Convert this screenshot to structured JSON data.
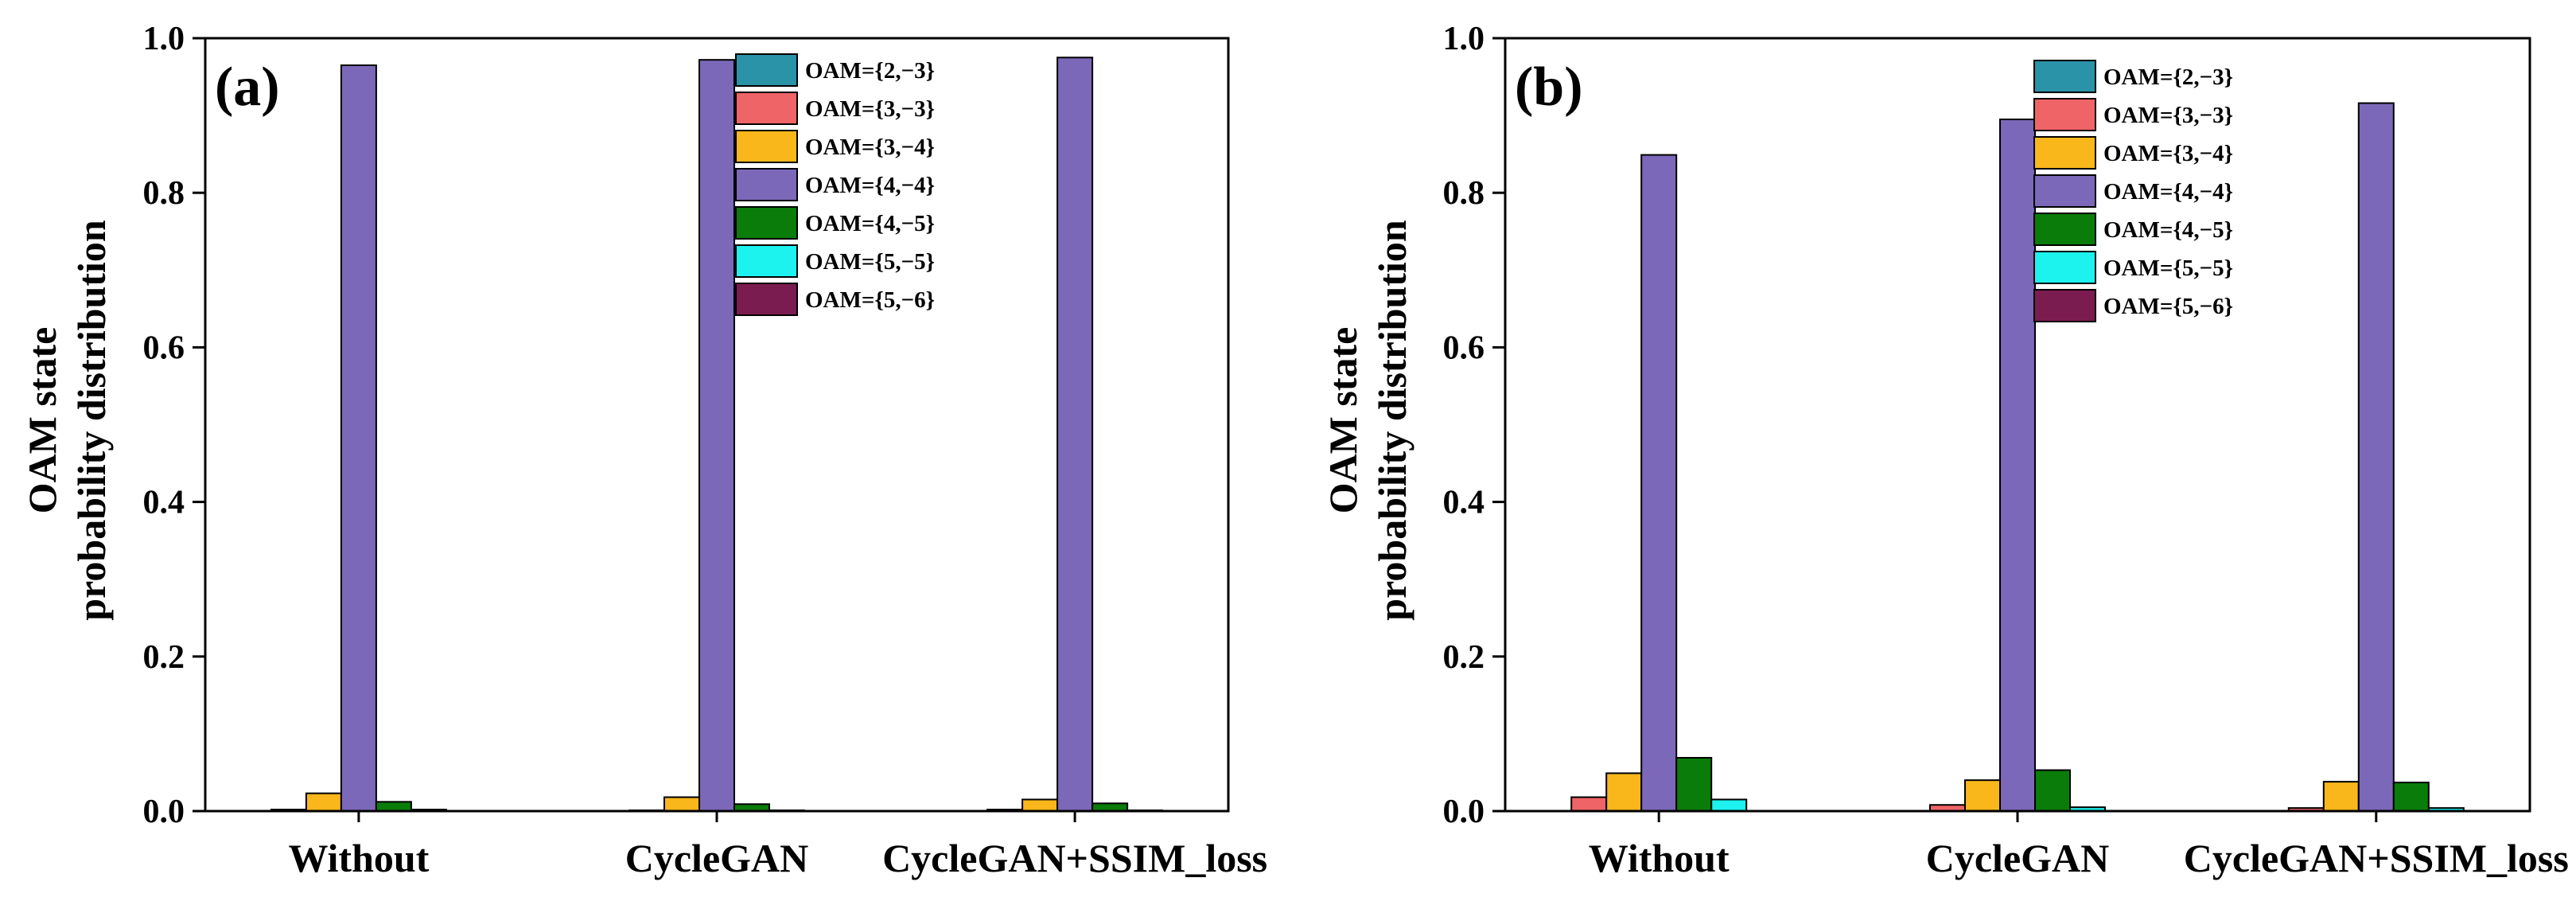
{
  "colors": {
    "series": [
      "#2a93a8",
      "#ef6466",
      "#f9b71b",
      "#7b68b8",
      "#0a7c0a",
      "#1cf2ee",
      "#7b1c50"
    ],
    "axis": "#000000",
    "bar_stroke": "#000000"
  },
  "chart_data": [
    {
      "type": "bar",
      "panel_label": "(a)",
      "categories": [
        "Without",
        "CycleGAN",
        "CycleGAN+SSIM_loss"
      ],
      "series": [
        {
          "name": "OAM={2,−3}",
          "values": [
            0.0,
            0.0,
            0.0
          ]
        },
        {
          "name": "OAM={3,−3}",
          "values": [
            0.002,
            0.001,
            0.002
          ]
        },
        {
          "name": "OAM={3,−4}",
          "values": [
            0.023,
            0.018,
            0.015
          ]
        },
        {
          "name": "OAM={4,−4}",
          "values": [
            0.965,
            0.972,
            0.975
          ]
        },
        {
          "name": "OAM={4,−5}",
          "values": [
            0.012,
            0.009,
            0.01
          ]
        },
        {
          "name": "OAM={5,−5}",
          "values": [
            0.002,
            0.001,
            0.001
          ]
        },
        {
          "name": "OAM={5,−6}",
          "values": [
            0.0,
            0.0,
            0.0
          ]
        }
      ],
      "ylabel_line1": "OAM state",
      "ylabel_line2": "probability distribution",
      "ylim": [
        0,
        1.0
      ],
      "yticks": [
        0.0,
        0.2,
        0.4,
        0.6,
        0.8,
        1.0
      ],
      "ytick_labels": [
        "0.0",
        "0.2",
        "0.4",
        "0.6",
        "0.8",
        "1.0"
      ],
      "grid": false,
      "legend_position": "top-right"
    },
    {
      "type": "bar",
      "panel_label": "(b)",
      "categories": [
        "Without",
        "CycleGAN",
        "CycleGAN+SSIM_loss"
      ],
      "series": [
        {
          "name": "OAM={2,−3}",
          "values": [
            0.0,
            0.0,
            0.0
          ]
        },
        {
          "name": "OAM={3,−3}",
          "values": [
            0.018,
            0.008,
            0.004
          ]
        },
        {
          "name": "OAM={3,−4}",
          "values": [
            0.049,
            0.04,
            0.038
          ]
        },
        {
          "name": "OAM={4,−4}",
          "values": [
            0.849,
            0.895,
            0.916
          ]
        },
        {
          "name": "OAM={4,−5}",
          "values": [
            0.069,
            0.053,
            0.037
          ]
        },
        {
          "name": "OAM={5,−5}",
          "values": [
            0.015,
            0.005,
            0.004
          ]
        },
        {
          "name": "OAM={5,−6}",
          "values": [
            0.0,
            0.0,
            0.0
          ]
        }
      ],
      "ylabel_line1": "OAM state",
      "ylabel_line2": "probability distribution",
      "ylim": [
        0,
        1.0
      ],
      "yticks": [
        0.0,
        0.2,
        0.4,
        0.6,
        0.8,
        1.0
      ],
      "ytick_labels": [
        "0.0",
        "0.2",
        "0.4",
        "0.6",
        "0.8",
        "1.0"
      ],
      "grid": false,
      "legend_position": "top-right"
    }
  ]
}
